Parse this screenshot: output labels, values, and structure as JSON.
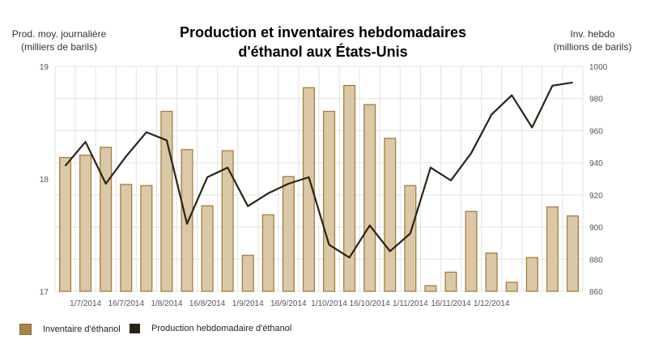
{
  "title_line1": "Production et inventaires hebdomadaires",
  "title_line2": "d'éthanol aux États-Unis",
  "left_axis_title_line1": "Prod. moy. journalière",
  "left_axis_title_line2": "(milliers de barils)",
  "right_axis_title_line1": "Inv. hebdo",
  "right_axis_title_line2": "(millions de barils)",
  "legend": [
    {
      "label": "Inventaire d'éthanol",
      "color": "#a8844a"
    },
    {
      "label": "Production hebdomadaire d'éthanol",
      "color": "#2a2418"
    }
  ],
  "chart_data": {
    "type": "bar",
    "grid": true,
    "x_tick_labels": [
      "1/7/2014",
      "16/7/2014",
      "1/8/2014",
      "16/8/2014",
      "1/9/2014",
      "16/9/2014",
      "1/10/2014",
      "16/10/2014",
      "1/11/2014",
      "16/11/2014",
      "1/12/2014"
    ],
    "left_axis": {
      "ylim": [
        17,
        19
      ],
      "ticks": [
        17,
        18,
        19
      ]
    },
    "right_axis": {
      "ylim": [
        860,
        1000
      ],
      "ticks": [
        860,
        880,
        900,
        920,
        940,
        960,
        980,
        1000
      ]
    },
    "series": [
      {
        "name": "Inventaire d'éthanol",
        "type": "bar",
        "axis": "left",
        "color": "#a8844a",
        "values": [
          18.19,
          18.21,
          18.28,
          17.95,
          17.94,
          18.6,
          18.26,
          17.76,
          18.25,
          17.32,
          17.68,
          18.02,
          18.81,
          18.6,
          18.83,
          18.66,
          18.36,
          17.94,
          17.05,
          17.17,
          17.71,
          17.34,
          17.08,
          17.3,
          17.75,
          17.67
        ]
      },
      {
        "name": "Production hebdomadaire d'éthanol",
        "type": "line",
        "axis": "right",
        "color": "#2a2418",
        "values": [
          938,
          953,
          927,
          944,
          959,
          954,
          902,
          931,
          937,
          913,
          921,
          927,
          931,
          889,
          881,
          901,
          885,
          896,
          937,
          929,
          946,
          970,
          982,
          962,
          988,
          990
        ]
      }
    ]
  }
}
